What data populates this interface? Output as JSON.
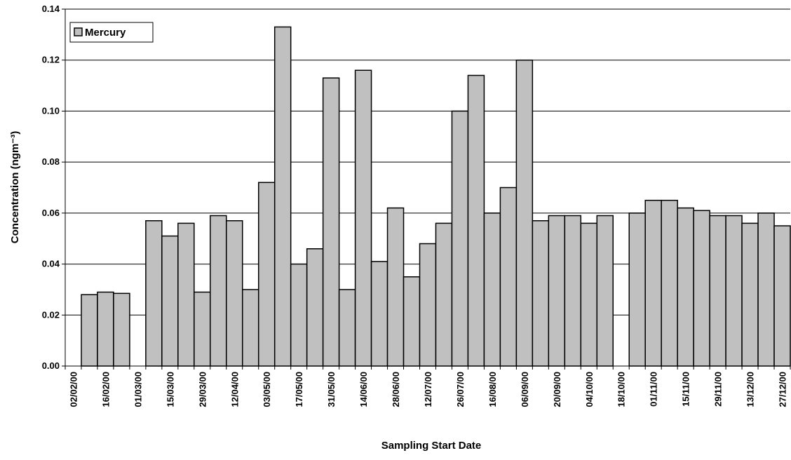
{
  "chart_data": {
    "type": "bar",
    "x_label": "Sampling Start Date",
    "y_label": "Concentration (ngm⁻³)",
    "categories": [
      "02/02/00",
      null,
      "16/02/00",
      null,
      "01/03/00",
      null,
      "15/03/00",
      null,
      "29/03/00",
      null,
      "12/04/00",
      null,
      "03/05/00",
      null,
      "17/05/00",
      null,
      "31/05/00",
      null,
      "14/06/00",
      null,
      "28/06/00",
      null,
      "12/07/00",
      null,
      "26/07/00",
      null,
      "16/08/00",
      null,
      "06/09/00",
      null,
      "20/09/00",
      null,
      "04/10/00",
      null,
      "18/10/00",
      null,
      "01/11/00",
      null,
      "15/11/00",
      null,
      "29/11/00",
      null,
      "13/12/00",
      null,
      "27/12/00"
    ],
    "series": [
      {
        "name": "Mercury",
        "color": "#c0c0c0",
        "values": [
          null,
          0.028,
          0.029,
          0.0285,
          null,
          0.057,
          0.051,
          0.056,
          0.029,
          0.059,
          0.057,
          0.03,
          0.072,
          0.133,
          0.04,
          0.046,
          0.113,
          0.03,
          0.116,
          0.041,
          0.062,
          0.035,
          0.048,
          0.056,
          0.1,
          0.114,
          0.06,
          0.07,
          0.12,
          0.057,
          0.059,
          0.059,
          0.056,
          0.059,
          null,
          0.06,
          0.065,
          0.065,
          0.062,
          0.061,
          0.059,
          0.059,
          0.056,
          0.06,
          0.055
        ]
      }
    ],
    "ylim": [
      0,
      0.14
    ],
    "yticks": [
      {
        "value": 0,
        "label": "0.00"
      },
      {
        "value": 0.02,
        "label": "0.02"
      },
      {
        "value": 0.04,
        "label": "0.04"
      },
      {
        "value": 0.06,
        "label": "0.06"
      },
      {
        "value": 0.08,
        "label": "0.08"
      },
      {
        "value": 0.1,
        "label": "0.10"
      },
      {
        "value": 0.12,
        "label": "0.12"
      },
      {
        "value": 0.14,
        "label": "0.14"
      }
    ],
    "grid": true,
    "legend": "top-left"
  }
}
